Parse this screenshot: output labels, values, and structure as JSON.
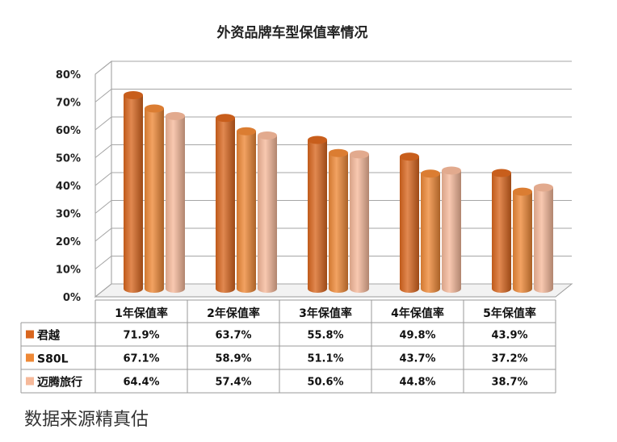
{
  "chart_data": {
    "type": "bar",
    "title": "外资品牌车型保值率情况",
    "categories": [
      "1年保值率",
      "2年保值率",
      "3年保值率",
      "4年保值率",
      "5年保值率"
    ],
    "series": [
      {
        "name": "君越",
        "values": [
          71.9,
          63.7,
          55.8,
          49.8,
          43.9
        ],
        "labels": [
          "71.9%",
          "63.7%",
          "55.8%",
          "49.8%",
          "43.9%"
        ],
        "color": "#D9661E"
      },
      {
        "name": "S80L",
        "values": [
          67.1,
          58.9,
          51.1,
          43.7,
          37.2
        ],
        "labels": [
          "67.1%",
          "58.9%",
          "51.1%",
          "43.7%",
          "37.2%"
        ],
        "color": "#EE8836"
      },
      {
        "name": "迈腾旅行",
        "values": [
          64.4,
          57.4,
          50.6,
          44.8,
          38.7
        ],
        "labels": [
          "64.4%",
          "57.4%",
          "50.6%",
          "44.8%",
          "38.7%"
        ],
        "color": "#F6B99A"
      }
    ],
    "yticks": [
      "0%",
      "10%",
      "20%",
      "30%",
      "40%",
      "50%",
      "60%",
      "70%",
      "80%"
    ],
    "ylim": [
      0,
      80
    ],
    "grid": true,
    "legend": "data-table"
  },
  "footer": {
    "source_text": "数据来源精真估"
  }
}
